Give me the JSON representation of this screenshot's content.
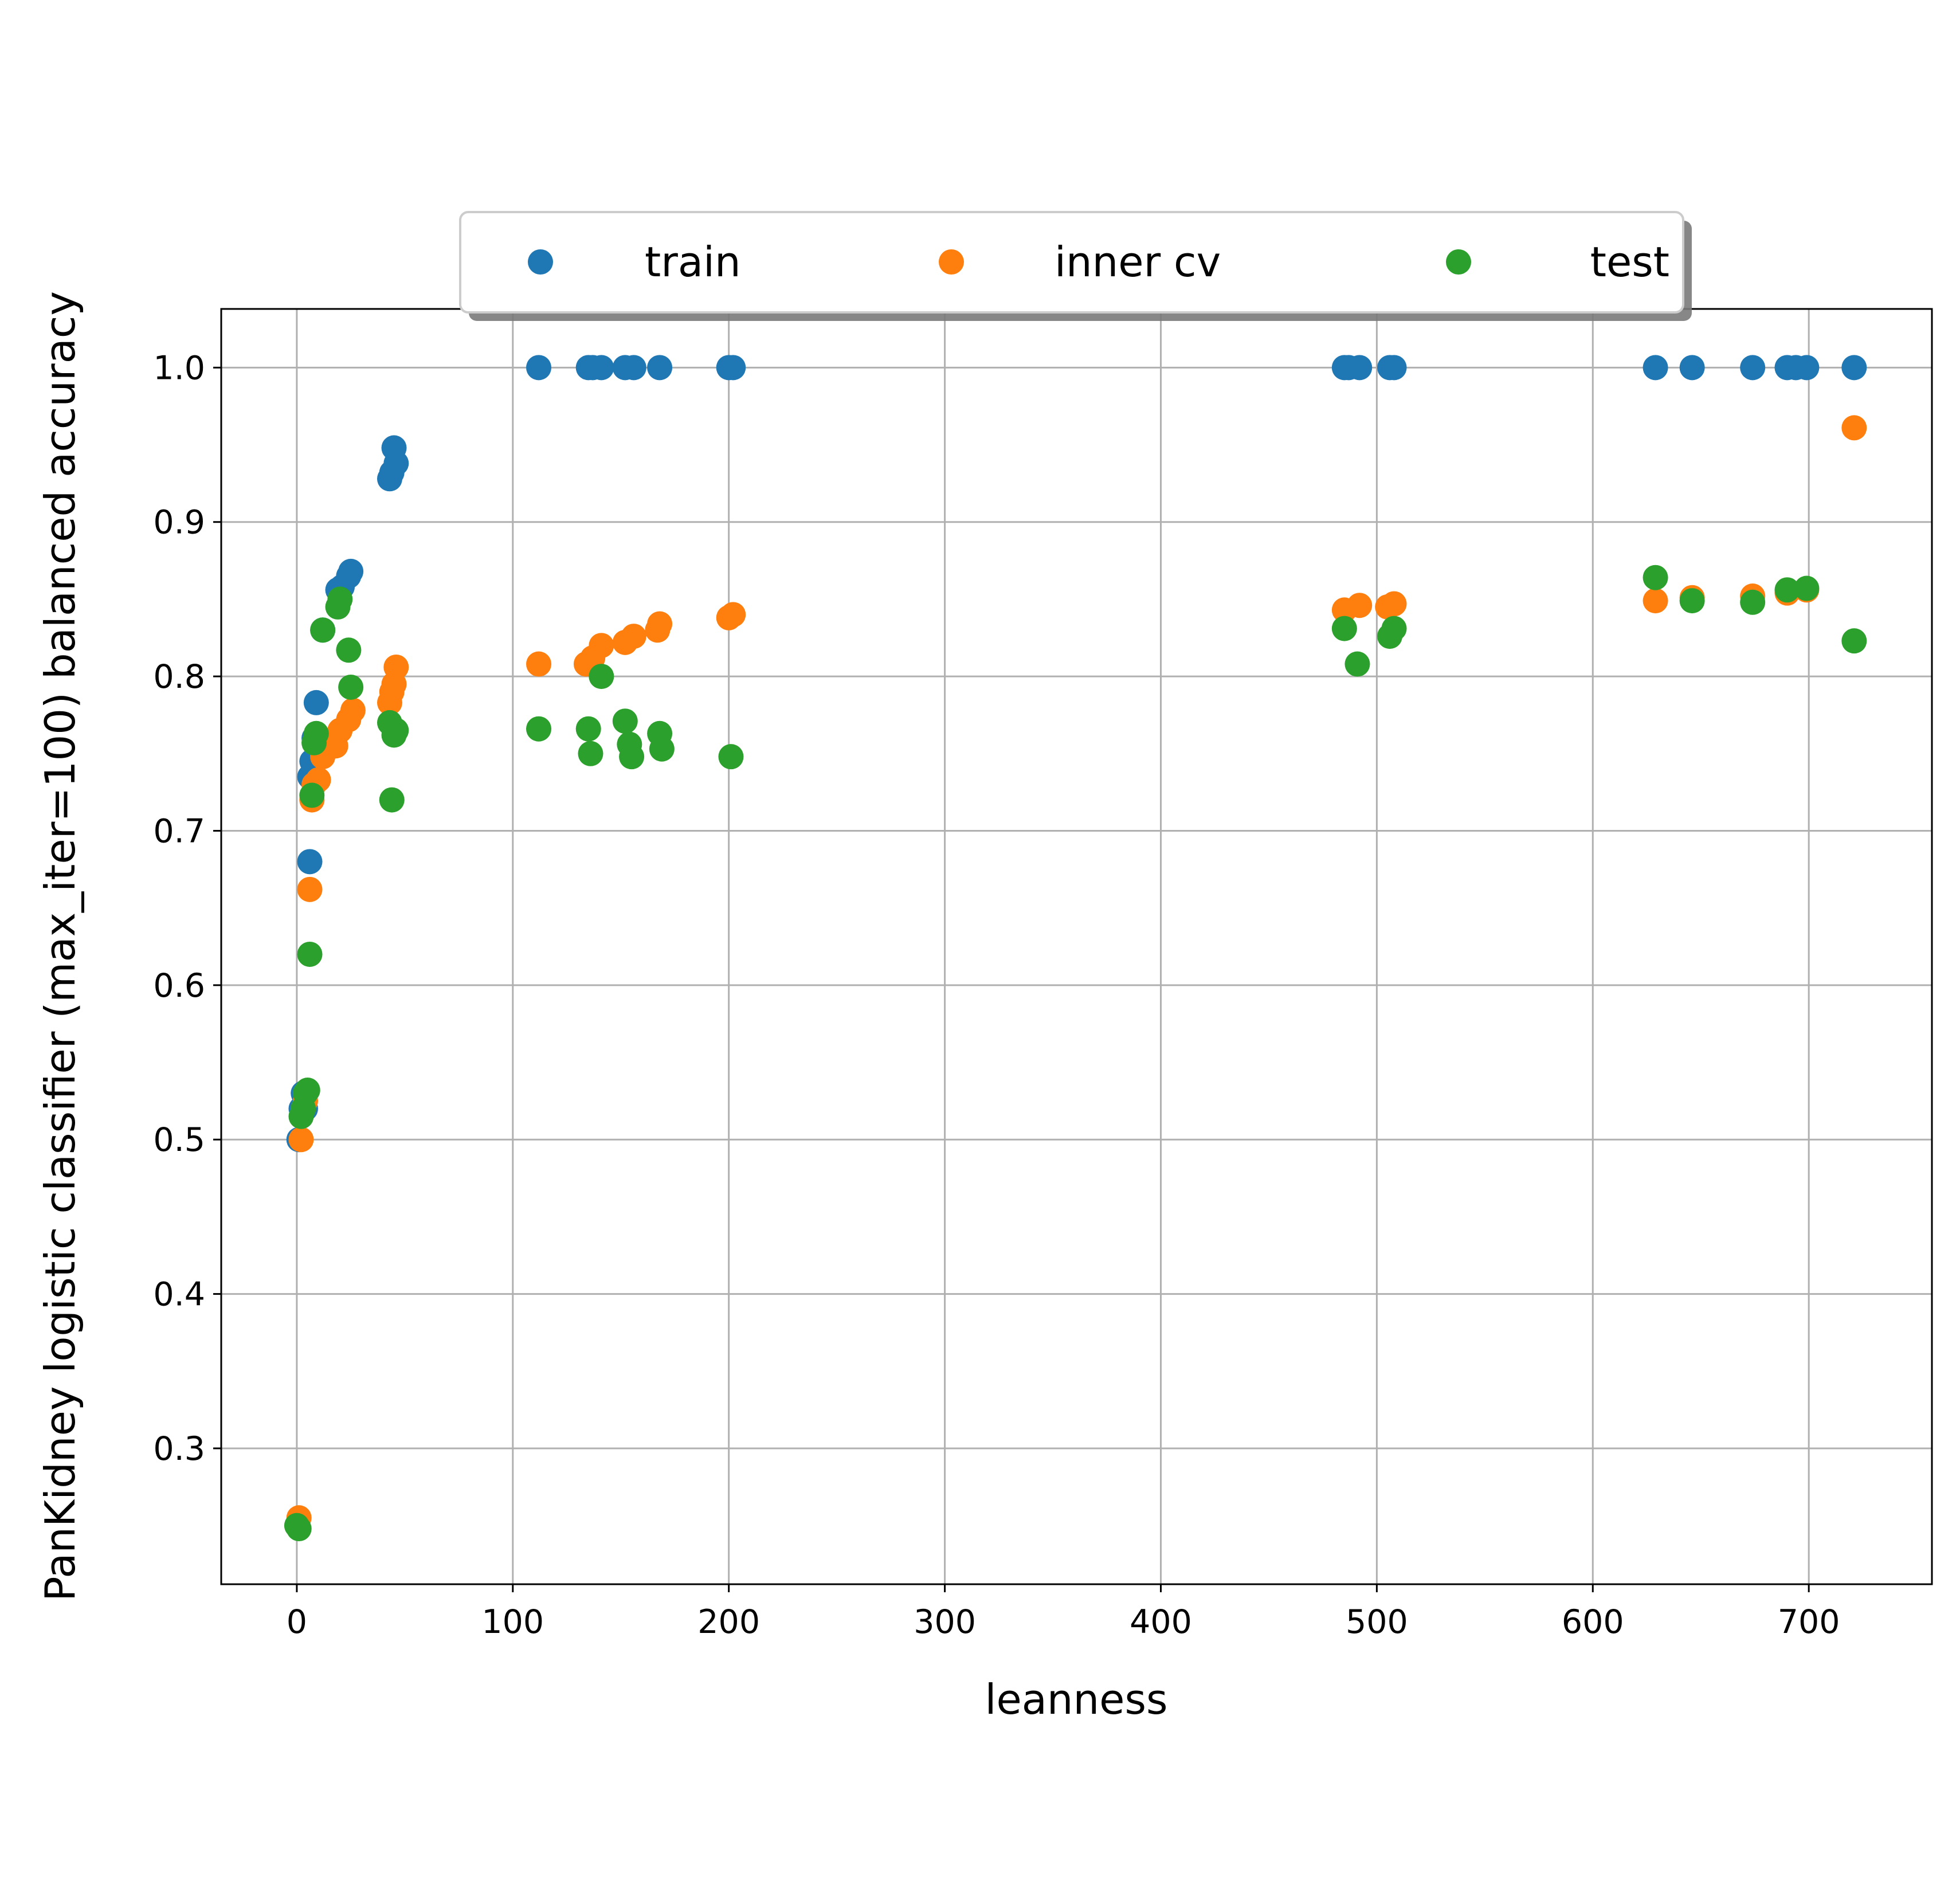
{
  "chart_data": {
    "type": "scatter",
    "xlabel": "leanness",
    "ylabel": "PanKidney logistic classifier (max_iter=100) balanced accuracy",
    "xlim": [
      -35,
      757
    ],
    "ylim": [
      0.212,
      1.038
    ],
    "xticks": [
      0,
      100,
      200,
      300,
      400,
      500,
      600,
      700
    ],
    "yticks": [
      0.3,
      0.4,
      0.5,
      0.6,
      0.7,
      0.8,
      0.9,
      1.0
    ],
    "xtick_labels": [
      "0",
      "100",
      "200",
      "300",
      "400",
      "500",
      "600",
      "700"
    ],
    "ytick_labels": [
      "0.3",
      "0.4",
      "0.5",
      "0.6",
      "0.7",
      "0.8",
      "0.9",
      "1.0"
    ],
    "grid": true,
    "legend": {
      "position": "top-center",
      "columns": 3
    },
    "series": [
      {
        "name": "train",
        "color": "#1f77b4",
        "points": [
          [
            1,
            0.5
          ],
          [
            2,
            0.52
          ],
          [
            3,
            0.53
          ],
          [
            4,
            0.52
          ],
          [
            6,
            0.68
          ],
          [
            6,
            0.735
          ],
          [
            7,
            0.745
          ],
          [
            8,
            0.76
          ],
          [
            9,
            0.783
          ],
          [
            12,
            0.83
          ],
          [
            19,
            0.856
          ],
          [
            21,
            0.858
          ],
          [
            24,
            0.865
          ],
          [
            25,
            0.868
          ],
          [
            43,
            0.928
          ],
          [
            44,
            0.932
          ],
          [
            45,
            0.948
          ],
          [
            46,
            0.938
          ],
          [
            112,
            1.0
          ],
          [
            135,
            1.0
          ],
          [
            137,
            1.0
          ],
          [
            141,
            1.0
          ],
          [
            152,
            1.0
          ],
          [
            156,
            1.0
          ],
          [
            168,
            1.0
          ],
          [
            200,
            1.0
          ],
          [
            202,
            1.0
          ],
          [
            485,
            1.0
          ],
          [
            487,
            1.0
          ],
          [
            492,
            1.0
          ],
          [
            506,
            1.0
          ],
          [
            508,
            1.0
          ],
          [
            629,
            1.0
          ],
          [
            646,
            1.0
          ],
          [
            674,
            1.0
          ],
          [
            690,
            1.0
          ],
          [
            694,
            1.0
          ],
          [
            699,
            1.0
          ],
          [
            721,
            1.0
          ]
        ]
      },
      {
        "name": "inner cv",
        "color": "#ff7f0e",
        "points": [
          [
            1,
            0.255
          ],
          [
            2,
            0.5
          ],
          [
            3,
            0.52
          ],
          [
            4,
            0.525
          ],
          [
            6,
            0.662
          ],
          [
            7,
            0.72
          ],
          [
            8,
            0.73
          ],
          [
            10,
            0.733
          ],
          [
            12,
            0.748
          ],
          [
            18,
            0.755
          ],
          [
            20,
            0.765
          ],
          [
            24,
            0.772
          ],
          [
            26,
            0.778
          ],
          [
            43,
            0.783
          ],
          [
            44,
            0.79
          ],
          [
            45,
            0.795
          ],
          [
            46,
            0.806
          ],
          [
            112,
            0.808
          ],
          [
            134,
            0.808
          ],
          [
            137,
            0.812
          ],
          [
            141,
            0.82
          ],
          [
            152,
            0.822
          ],
          [
            156,
            0.826
          ],
          [
            167,
            0.83
          ],
          [
            168,
            0.834
          ],
          [
            200,
            0.838
          ],
          [
            202,
            0.84
          ],
          [
            485,
            0.843
          ],
          [
            492,
            0.846
          ],
          [
            505,
            0.845
          ],
          [
            508,
            0.847
          ],
          [
            629,
            0.849
          ],
          [
            646,
            0.851
          ],
          [
            674,
            0.852
          ],
          [
            690,
            0.854
          ],
          [
            699,
            0.856
          ],
          [
            721,
            0.961
          ]
        ]
      },
      {
        "name": "test",
        "color": "#2ca02c",
        "points": [
          [
            0,
            0.25
          ],
          [
            1,
            0.248
          ],
          [
            2,
            0.515
          ],
          [
            3,
            0.52
          ],
          [
            4,
            0.53
          ],
          [
            5,
            0.532
          ],
          [
            6,
            0.62
          ],
          [
            7,
            0.723
          ],
          [
            8,
            0.757
          ],
          [
            9,
            0.763
          ],
          [
            12,
            0.83
          ],
          [
            19,
            0.845
          ],
          [
            20,
            0.85
          ],
          [
            24,
            0.817
          ],
          [
            25,
            0.793
          ],
          [
            43,
            0.77
          ],
          [
            44,
            0.72
          ],
          [
            45,
            0.762
          ],
          [
            46,
            0.765
          ],
          [
            112,
            0.766
          ],
          [
            135,
            0.766
          ],
          [
            136,
            0.75
          ],
          [
            141,
            0.8
          ],
          [
            152,
            0.771
          ],
          [
            154,
            0.756
          ],
          [
            155,
            0.748
          ],
          [
            168,
            0.763
          ],
          [
            169,
            0.753
          ],
          [
            201,
            0.748
          ],
          [
            485,
            0.831
          ],
          [
            491,
            0.808
          ],
          [
            506,
            0.826
          ],
          [
            508,
            0.831
          ],
          [
            629,
            0.864
          ],
          [
            646,
            0.849
          ],
          [
            674,
            0.848
          ],
          [
            690,
            0.856
          ],
          [
            699,
            0.857
          ],
          [
            721,
            0.823
          ]
        ]
      }
    ]
  }
}
